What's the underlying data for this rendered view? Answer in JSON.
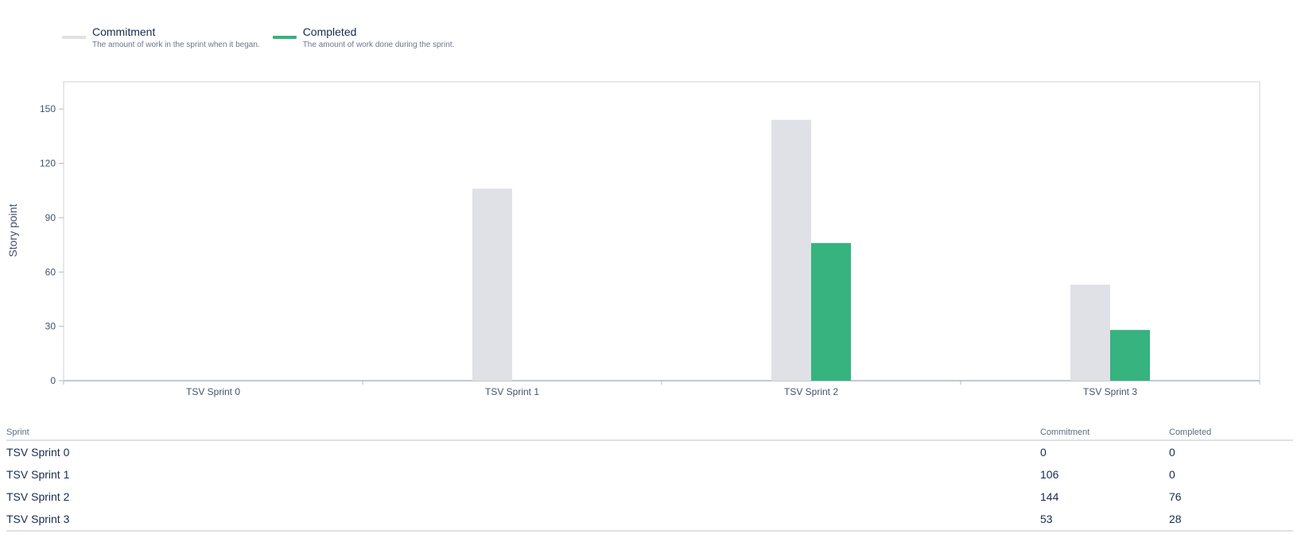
{
  "legend": [
    {
      "label": "Commitment",
      "description": "The amount of work in the sprint when it began.",
      "color": "#dfe1e6"
    },
    {
      "label": "Completed",
      "description": "The amount of work done during the sprint.",
      "color": "#36b37e"
    }
  ],
  "chart_data": {
    "type": "bar",
    "categories": [
      "TSV Sprint 0",
      "TSV Sprint 1",
      "TSV Sprint 2",
      "TSV Sprint 3"
    ],
    "series": [
      {
        "name": "Commitment",
        "values": [
          0,
          106,
          144,
          53
        ],
        "color": "#dfe1e6"
      },
      {
        "name": "Completed",
        "values": [
          0,
          0,
          76,
          28
        ],
        "color": "#36b37e"
      }
    ],
    "ylabel": "Story point",
    "xlabel": "",
    "ylim": [
      0,
      165
    ],
    "yticks": [
      0,
      30,
      60,
      90,
      120,
      150
    ]
  },
  "table": {
    "headers": {
      "sprint": "Sprint",
      "commitment": "Commitment",
      "completed": "Completed"
    },
    "rows": [
      {
        "sprint": "TSV Sprint 0",
        "commitment": "0",
        "completed": "0"
      },
      {
        "sprint": "TSV Sprint 1",
        "commitment": "106",
        "completed": "0"
      },
      {
        "sprint": "TSV Sprint 2",
        "commitment": "144",
        "completed": "76"
      },
      {
        "sprint": "TSV Sprint 3",
        "commitment": "53",
        "completed": "28"
      }
    ]
  }
}
